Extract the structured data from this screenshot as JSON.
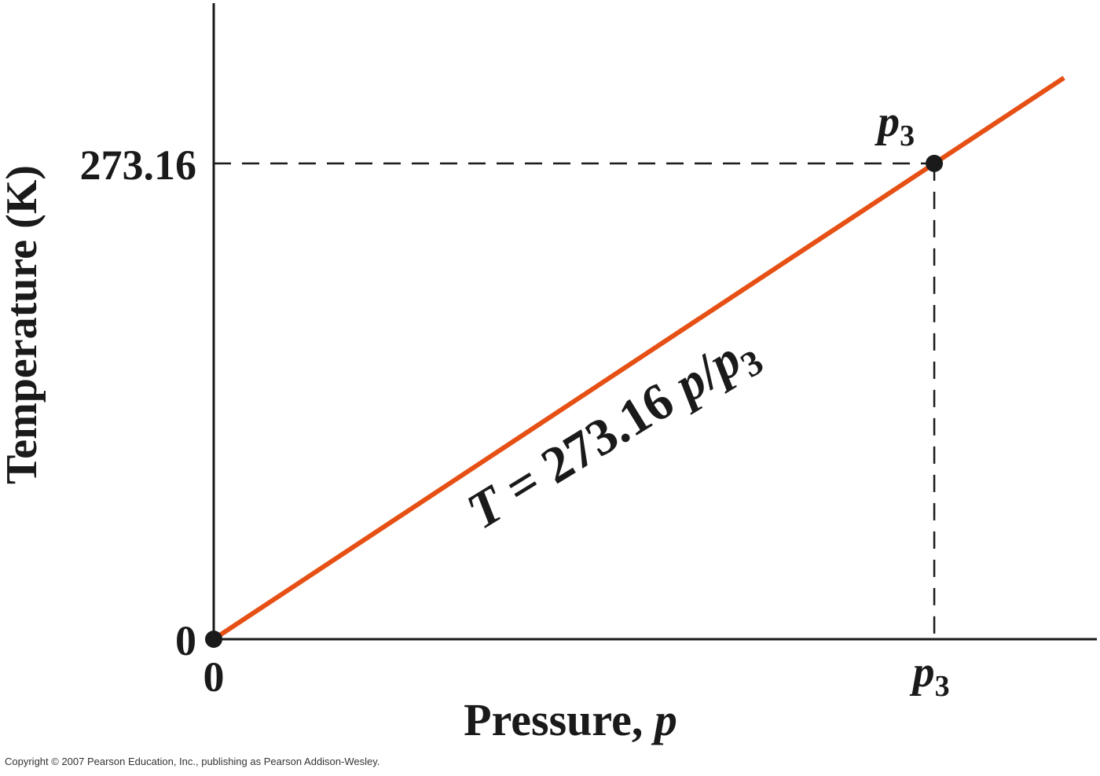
{
  "chart_data": {
    "type": "line",
    "xlabel": "Pressure, p",
    "ylabel": "Temperature (K)",
    "x_tick_labels": [
      "0",
      "p3"
    ],
    "y_tick_labels": [
      "0",
      "273.16"
    ],
    "series": [
      {
        "x": [
          0,
          1.18
        ],
        "y": [
          0,
          322.3
        ]
      }
    ],
    "points": [
      {
        "label": "",
        "x": 0,
        "y": 0
      },
      {
        "label": "p3",
        "x": 1,
        "y": 273.16
      }
    ],
    "annotation": "T = 273.16 p/p3",
    "xlim": [
      0,
      1.23
    ],
    "ylim": [
      0,
      367
    ],
    "grid": false,
    "colors": {
      "line": "#e65014",
      "points": "#1a1a1a",
      "axes": "#1a1a1a"
    }
  },
  "copyright": "Copyright © 2007 Pearson Education, Inc., publishing as Pearson Addison-Wesley."
}
